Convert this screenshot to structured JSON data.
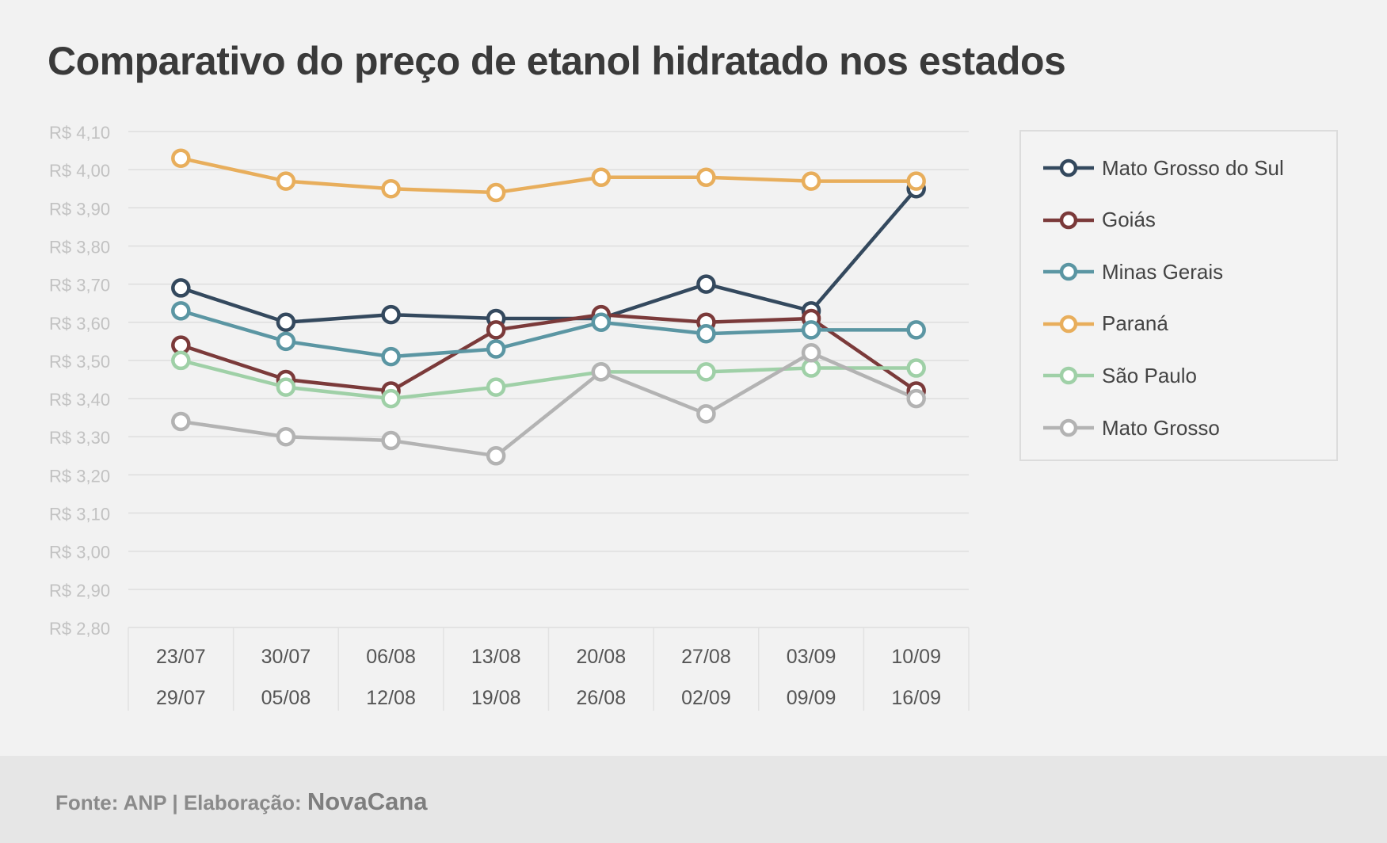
{
  "title": "Comparativo do preço de etanol hidratado nos estados",
  "footer": {
    "source_text": "Fonte: ANP | Elaboração:",
    "brand": "NovaCana"
  },
  "chart_data": {
    "type": "line",
    "title": "Comparativo do preço de etanol hidratado nos estados",
    "xlabel": "",
    "ylabel": "",
    "categories": [
      [
        "23/07",
        "29/07"
      ],
      [
        "30/07",
        "05/08"
      ],
      [
        "06/08",
        "12/08"
      ],
      [
        "13/08",
        "19/08"
      ],
      [
        "20/08",
        "26/08"
      ],
      [
        "27/08",
        "02/09"
      ],
      [
        "03/09",
        "09/09"
      ],
      [
        "10/09",
        "16/09"
      ]
    ],
    "ylim": [
      2.8,
      4.1
    ],
    "yticks": [
      4.1,
      4.0,
      3.9,
      3.8,
      3.7,
      3.6,
      3.5,
      3.4,
      3.3,
      3.2,
      3.1,
      3.0,
      2.9,
      2.8
    ],
    "ytick_labels": [
      "R$ 4,10",
      "R$ 4,00",
      "R$ 3,90",
      "R$ 3,80",
      "R$ 3,70",
      "R$ 3,60",
      "R$ 3,50",
      "R$ 3,40",
      "R$ 3,30",
      "R$ 3,20",
      "R$ 3,10",
      "R$ 3,00",
      "R$ 2,90",
      "R$ 2,80"
    ],
    "grid": true,
    "legend_position": "right",
    "series": [
      {
        "name": "Mato Grosso do Sul",
        "color": "#34495e",
        "values": [
          3.69,
          3.6,
          3.62,
          3.61,
          3.61,
          3.7,
          3.63,
          3.95
        ]
      },
      {
        "name": "Goiás",
        "color": "#7b3a3a",
        "values": [
          3.54,
          3.45,
          3.42,
          3.58,
          3.62,
          3.6,
          3.61,
          3.42
        ]
      },
      {
        "name": "Minas Gerais",
        "color": "#5b96a3",
        "values": [
          3.63,
          3.55,
          3.51,
          3.53,
          3.6,
          3.57,
          3.58,
          3.58
        ]
      },
      {
        "name": "Paraná",
        "color": "#e8ae5c",
        "values": [
          4.03,
          3.97,
          3.95,
          3.94,
          3.98,
          3.98,
          3.97,
          3.97
        ]
      },
      {
        "name": "São Paulo",
        "color": "#9fd0a7",
        "values": [
          3.5,
          3.43,
          3.4,
          3.43,
          3.47,
          3.47,
          3.48,
          3.48
        ]
      },
      {
        "name": "Mato Grosso",
        "color": "#b3b3b3",
        "values": [
          3.34,
          3.3,
          3.29,
          3.25,
          3.47,
          3.36,
          3.52,
          3.4
        ]
      }
    ]
  }
}
